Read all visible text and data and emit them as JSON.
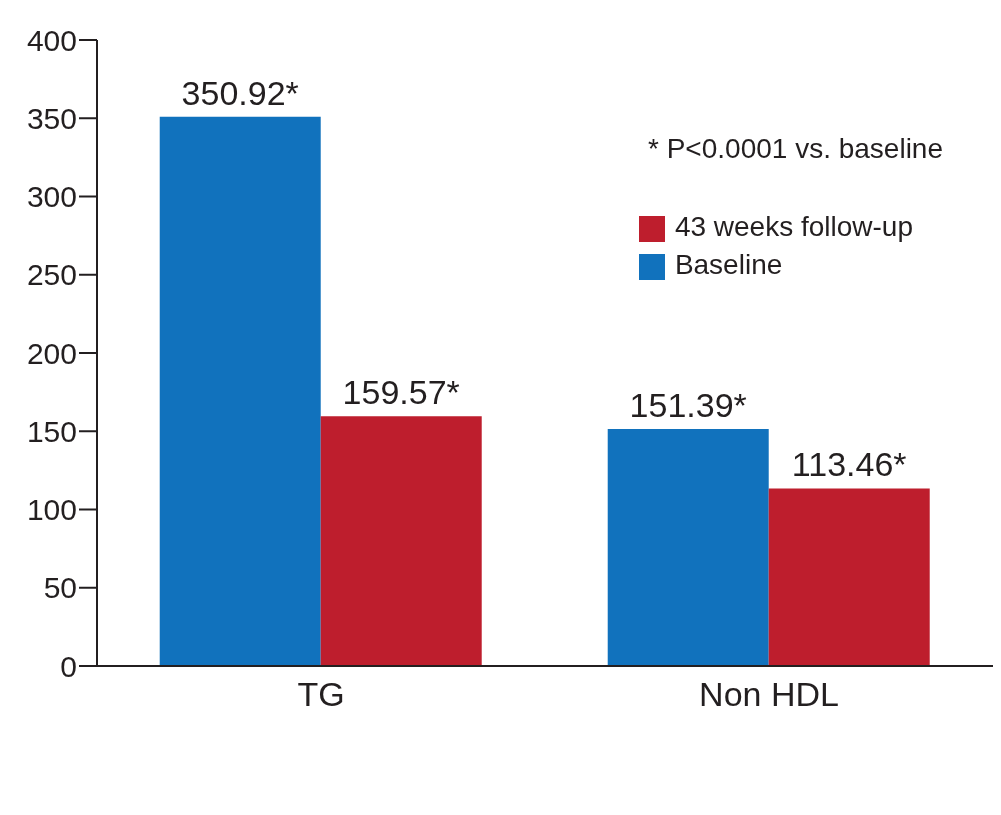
{
  "chart_data": {
    "type": "bar",
    "categories": [
      "TG",
      "Non HDL"
    ],
    "series": [
      {
        "name": "Baseline",
        "color": "#1172bd",
        "values": [
          350.92,
          151.39
        ],
        "value_labels": [
          "350.92*",
          "151.39*"
        ]
      },
      {
        "name": "43 weeks follow-up",
        "color": "#be1e2d",
        "values": [
          159.57,
          113.46
        ],
        "value_labels": [
          "159.57*",
          "113.46*"
        ]
      }
    ],
    "ylim": [
      0,
      400
    ],
    "yticks": [
      0,
      50,
      100,
      150,
      200,
      250,
      300,
      350,
      400
    ],
    "grid": false,
    "legend": "top right",
    "annotations": [
      "* P<0.0001 vs. baseline"
    ]
  }
}
